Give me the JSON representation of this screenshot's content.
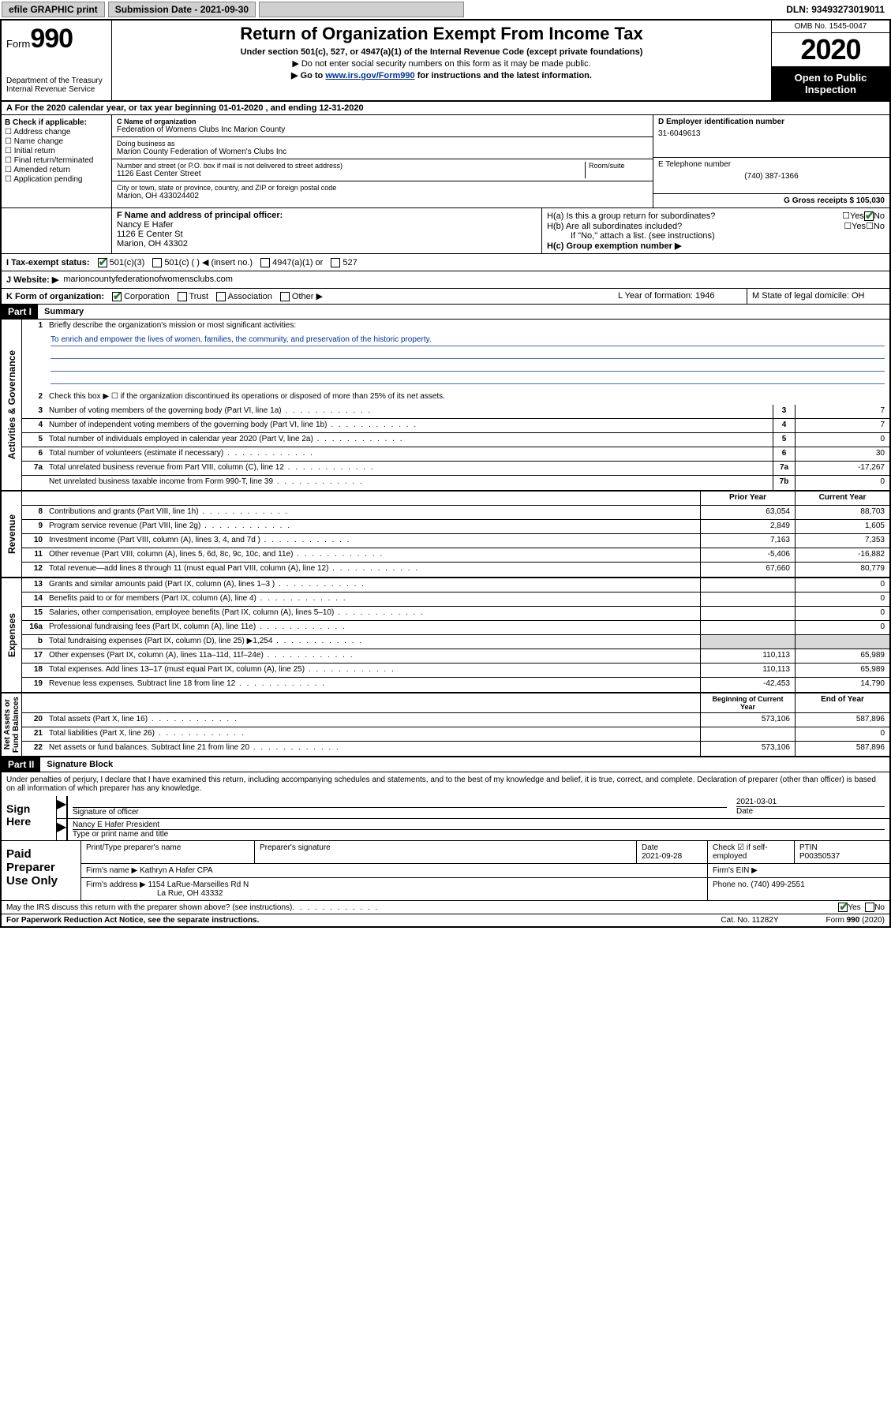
{
  "topbar": {
    "efile": "efile GRAPHIC print",
    "submission_label": "Submission Date - 2021-09-30",
    "dln": "DLN: 93493273019011"
  },
  "header": {
    "form_label": "Form",
    "form_number": "990",
    "dept": "Department of the Treasury",
    "irs": "Internal Revenue Service",
    "title": "Return of Organization Exempt From Income Tax",
    "sub": "Under section 501(c), 527, or 4947(a)(1) of the Internal Revenue Code (except private foundations)",
    "note1": "▶ Do not enter social security numbers on this form as it may be made public.",
    "note2_pre": "▶ Go to ",
    "note2_link": "www.irs.gov/Form990",
    "note2_post": " for instructions and the latest information.",
    "omb": "OMB No. 1545-0047",
    "year": "2020",
    "open_public": "Open to Public Inspection"
  },
  "period": {
    "text": "A   For the 2020 calendar year, or tax year beginning 01-01-2020   , and ending 12-31-2020"
  },
  "boxB": {
    "label": "B Check if applicable:",
    "items": [
      "Address change",
      "Name change",
      "Initial return",
      "Final return/terminated",
      "Amended return",
      "Application pending"
    ]
  },
  "boxC": {
    "name_label": "C Name of organization",
    "name": "Federation of Womens Clubs Inc Marion County",
    "dba_label": "Doing business as",
    "dba": "Marion County Federation of Women's Clubs Inc",
    "addr_label": "Number and street (or P.O. box if mail is not delivered to street address)",
    "room_label": "Room/suite",
    "addr": "1126 East Center Street",
    "city_label": "City or town, state or province, country, and ZIP or foreign postal code",
    "city": "Marion, OH  433024402"
  },
  "boxD": {
    "ein_label": "D Employer identification number",
    "ein": "31-6049613",
    "phone_label": "E Telephone number",
    "phone": "(740) 387-1366",
    "gross_label": "G Gross receipts $ 105,030"
  },
  "boxF": {
    "label": "F  Name and address of principal officer:",
    "name": "Nancy E Hafer",
    "addr1": "1126 E Center St",
    "addr2": "Marion, OH  43302"
  },
  "boxH": {
    "ha": "H(a)  Is this a group return for subordinates?",
    "hb": "H(b)  Are all subordinates included?",
    "hb_note": "If \"No,\" attach a list. (see instructions)",
    "hc": "H(c)  Group exemption number ▶"
  },
  "taxI": {
    "label": "I Tax-exempt status:",
    "opt1": "501(c)(3)",
    "opt2": "501(c) (  ) ◀ (insert no.)",
    "opt3": "4947(a)(1) or",
    "opt4": "527"
  },
  "website": {
    "label": "J   Website: ▶",
    "value": "marioncountyfederationofwomensclubs.com"
  },
  "rowK": {
    "label": "K Form of organization:",
    "corp": "Corporation",
    "trust": "Trust",
    "assoc": "Association",
    "other": "Other ▶",
    "yof_label": "L Year of formation: 1946",
    "dom_label": "M State of legal domicile: OH"
  },
  "part1": {
    "header": "Part I",
    "title": "Summary",
    "q1": "Briefly describe the organization's mission or most significant activities:",
    "mission": "To enrich and empower the lives of women, families, the community, and preservation of the historic property.",
    "q2": "Check this box ▶ ☐  if the organization discontinued its operations or disposed of more than 25% of its net assets.",
    "rows_gov": [
      {
        "n": "3",
        "d": "Number of voting members of the governing body (Part VI, line 1a)",
        "b": "3",
        "v": "7"
      },
      {
        "n": "4",
        "d": "Number of independent voting members of the governing body (Part VI, line 1b)",
        "b": "4",
        "v": "7"
      },
      {
        "n": "5",
        "d": "Total number of individuals employed in calendar year 2020 (Part V, line 2a)",
        "b": "5",
        "v": "0"
      },
      {
        "n": "6",
        "d": "Total number of volunteers (estimate if necessary)",
        "b": "6",
        "v": "30"
      },
      {
        "n": "7a",
        "d": "Total unrelated business revenue from Part VIII, column (C), line 12",
        "b": "7a",
        "v": "-17,267"
      },
      {
        "n": "",
        "d": "Net unrelated business taxable income from Form 990-T, line 39",
        "b": "7b",
        "v": "0"
      }
    ],
    "col_prior": "Prior Year",
    "col_current": "Current Year",
    "rows_rev": [
      {
        "n": "8",
        "d": "Contributions and grants (Part VIII, line 1h)",
        "p": "63,054",
        "c": "88,703"
      },
      {
        "n": "9",
        "d": "Program service revenue (Part VIII, line 2g)",
        "p": "2,849",
        "c": "1,605"
      },
      {
        "n": "10",
        "d": "Investment income (Part VIII, column (A), lines 3, 4, and 7d )",
        "p": "7,163",
        "c": "7,353"
      },
      {
        "n": "11",
        "d": "Other revenue (Part VIII, column (A), lines 5, 6d, 8c, 9c, 10c, and 11e)",
        "p": "-5,406",
        "c": "-16,882"
      },
      {
        "n": "12",
        "d": "Total revenue—add lines 8 through 11 (must equal Part VIII, column (A), line 12)",
        "p": "67,660",
        "c": "80,779"
      }
    ],
    "rows_exp": [
      {
        "n": "13",
        "d": "Grants and similar amounts paid (Part IX, column (A), lines 1–3 )",
        "p": "",
        "c": "0"
      },
      {
        "n": "14",
        "d": "Benefits paid to or for members (Part IX, column (A), line 4)",
        "p": "",
        "c": "0"
      },
      {
        "n": "15",
        "d": "Salaries, other compensation, employee benefits (Part IX, column (A), lines 5–10)",
        "p": "",
        "c": "0"
      },
      {
        "n": "16a",
        "d": "Professional fundraising fees (Part IX, column (A), line 11e)",
        "p": "",
        "c": "0"
      },
      {
        "n": "b",
        "d": "Total fundraising expenses (Part IX, column (D), line 25) ▶1,254",
        "p": "shade",
        "c": "shade"
      },
      {
        "n": "17",
        "d": "Other expenses (Part IX, column (A), lines 11a–11d, 11f–24e)",
        "p": "110,113",
        "c": "65,989"
      },
      {
        "n": "18",
        "d": "Total expenses. Add lines 13–17 (must equal Part IX, column (A), line 25)",
        "p": "110,113",
        "c": "65,989"
      },
      {
        "n": "19",
        "d": "Revenue less expenses. Subtract line 18 from line 12",
        "p": "-42,453",
        "c": "14,790"
      }
    ],
    "col_begin": "Beginning of Current Year",
    "col_end": "End of Year",
    "rows_net": [
      {
        "n": "20",
        "d": "Total assets (Part X, line 16)",
        "p": "573,106",
        "c": "587,896"
      },
      {
        "n": "21",
        "d": "Total liabilities (Part X, line 26)",
        "p": "",
        "c": "0"
      },
      {
        "n": "22",
        "d": "Net assets or fund balances. Subtract line 21 from line 20",
        "p": "573,106",
        "c": "587,896"
      }
    ]
  },
  "part2": {
    "header": "Part II",
    "title": "Signature Block",
    "decl": "Under penalties of perjury, I declare that I have examined this return, including accompanying schedules and statements, and to the best of my knowledge and belief, it is true, correct, and complete. Declaration of preparer (other than officer) is based on all information of which preparer has any knowledge.",
    "sign_here": "Sign Here",
    "sig_officer": "Signature of officer",
    "sig_date": "2021-03-01",
    "date_label": "Date",
    "officer_name": "Nancy E Hafer  President",
    "type_name": "Type or print name and title",
    "paid": "Paid Preparer Use Only",
    "prep_name_label": "Print/Type preparer's name",
    "prep_sig_label": "Preparer's signature",
    "prep_date_label": "Date",
    "prep_date": "2021-09-28",
    "check_self": "Check ☑ if self-employed",
    "ptin_label": "PTIN",
    "ptin": "P00350537",
    "firm_name_label": "Firm's name    ▶",
    "firm_name": "Kathryn A Hafer CPA",
    "firm_ein_label": "Firm's EIN ▶",
    "firm_addr_label": "Firm's address ▶",
    "firm_addr1": "1154 LaRue-Marseilles Rd N",
    "firm_addr2": "La Rue, OH  43332",
    "firm_phone_label": "Phone no. (740) 499-2551",
    "discuss": "May the IRS discuss this return with the preparer shown above? (see instructions)",
    "yes": "Yes",
    "no": "No"
  },
  "footer": {
    "pra": "For Paperwork Reduction Act Notice, see the separate instructions.",
    "cat": "Cat. No. 11282Y",
    "form": "Form 990 (2020)"
  }
}
